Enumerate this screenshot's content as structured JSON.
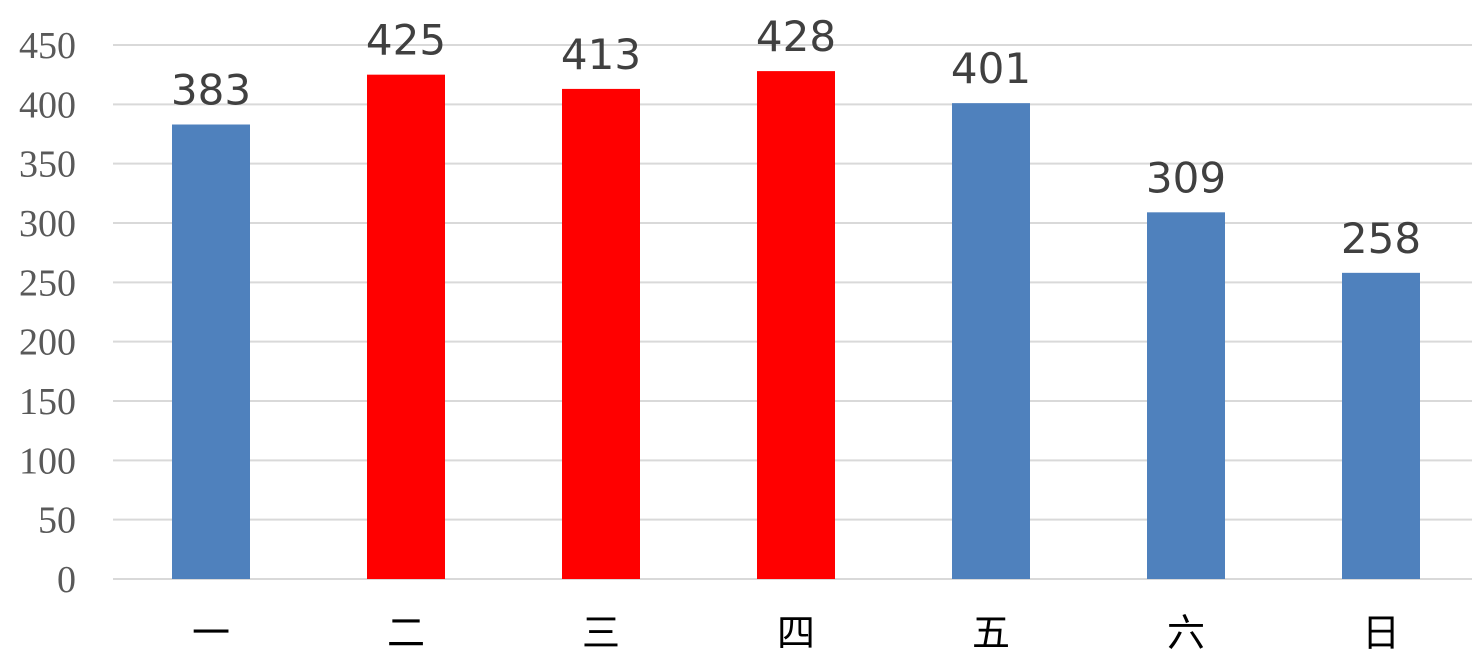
{
  "chart_data": {
    "type": "bar",
    "title": "",
    "xlabel": "",
    "ylabel": "",
    "categories": [
      "一",
      "二",
      "三",
      "四",
      "五",
      "六",
      "日"
    ],
    "values": [
      383,
      425,
      413,
      428,
      401,
      309,
      258
    ],
    "data_labels": [
      "383",
      "425",
      "413",
      "428",
      "401",
      "309",
      "258"
    ],
    "highlighted": [
      false,
      true,
      true,
      true,
      false,
      false,
      false
    ],
    "ylim": [
      0,
      450
    ],
    "yticks": [
      0,
      50,
      100,
      150,
      200,
      250,
      300,
      350,
      400,
      450
    ],
    "ytick_labels": [
      "0",
      "50",
      "100",
      "150",
      "200",
      "250",
      "300",
      "350",
      "400",
      "450"
    ],
    "grid": true,
    "legend": "none",
    "colors": {
      "default_bar": "#4f81bd",
      "highlight_bar": "#ff0000",
      "gridline": "#d9d9d9"
    }
  }
}
